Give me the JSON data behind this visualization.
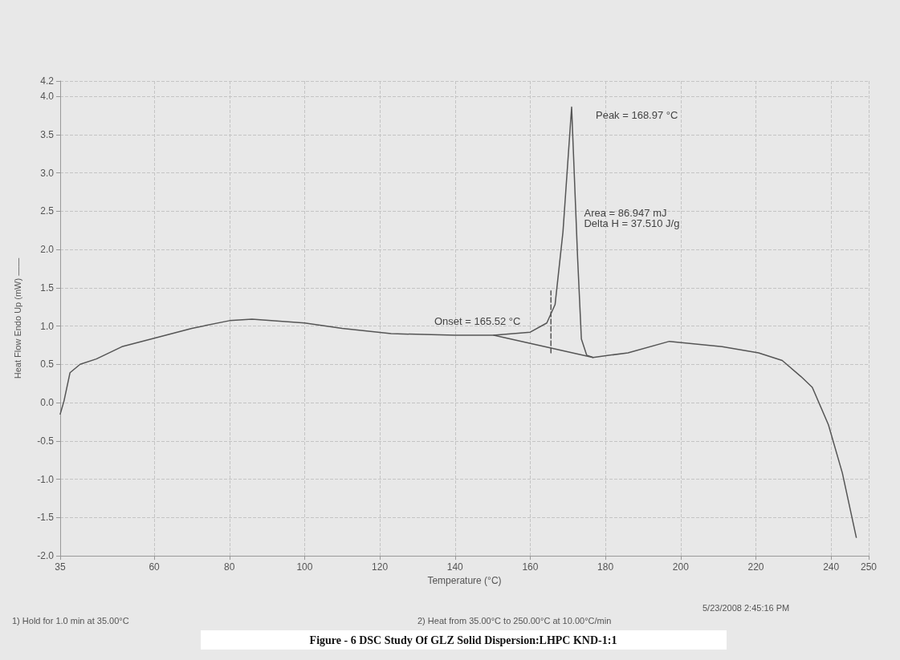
{
  "chart_data": {
    "type": "line",
    "title": "Figure - 6 DSC Study Of GLZ Solid Dispersion:LHPC KND-1:1",
    "xlabel": "Temperature (°C)",
    "ylabel": "Heat Flow Endo Up (mW) ——",
    "series": [
      {
        "color": "#555555",
        "line_style": "solid",
        "x": [
          35,
          36,
          37.6,
          40.3,
          44.6,
          51.4,
          60,
          70,
          80,
          86,
          100,
          110,
          123,
          140,
          150.3,
          160,
          164.4,
          166.6,
          168.7,
          171,
          172.6,
          173.6,
          175,
          176.7,
          186,
          197,
          211,
          220.7,
          227,
          232,
          235,
          239.3,
          243,
          246.7
        ],
        "values": [
          -0.15,
          0.02,
          0.39,
          0.5,
          0.57,
          0.73,
          0.84,
          0.97,
          1.07,
          1.09,
          1.04,
          0.97,
          0.9,
          0.88,
          0.88,
          0.92,
          1.04,
          1.28,
          2.23,
          3.86,
          1.88,
          0.83,
          0.62,
          0.59,
          0.65,
          0.8,
          0.73,
          0.65,
          0.55,
          0.34,
          0.2,
          -0.29,
          -0.92,
          -1.76
        ]
      },
      {
        "color": "#555555",
        "line_style": "solid",
        "x": [
          150.3,
          176.7
        ],
        "values": [
          0.88,
          0.59
        ]
      },
      {
        "color": "#555555",
        "line_style": "dashed",
        "x": [
          165.5,
          165.5
        ],
        "values": [
          0.65,
          1.46
        ]
      }
    ],
    "xlim": [
      35,
      250
    ],
    "xticks": [
      35,
      60,
      80,
      100,
      120,
      140,
      160,
      180,
      200,
      220,
      240,
      250
    ],
    "ylim": [
      -2,
      4.2
    ],
    "yticks": [
      {
        "value": -2,
        "label": "-2.0"
      },
      -1.5,
      {
        "value": -1,
        "label": "-1.0"
      },
      -0.5,
      {
        "value": 0,
        "label": "0.0"
      },
      0.5,
      {
        "value": 1,
        "label": "1.0"
      },
      1.5,
      {
        "value": 2,
        "label": "2.0"
      },
      2.5,
      {
        "value": 3,
        "label": "3.0"
      },
      3.5,
      {
        "value": 4,
        "label": "4.0"
      },
      4.2
    ],
    "grid": true,
    "marker": "none",
    "annotations": [
      {
        "text": "Peak = 168.97 °C",
        "x": 171,
        "y": 3.86
      },
      {
        "text": "Area = 86.947 mJ\nDelta H = 37.510 J/g",
        "x": 172.6,
        "y": 2.3
      },
      {
        "text": "Onset = 165.52 °C",
        "x": 160,
        "y": 0.92
      },
      "5/23/2008 2:45:16 PM",
      "1) Hold for 1.0 min at 35.00°C",
      "2) Heat from 35.00°C to 250.00°C at 10.00°C/min"
    ]
  }
}
